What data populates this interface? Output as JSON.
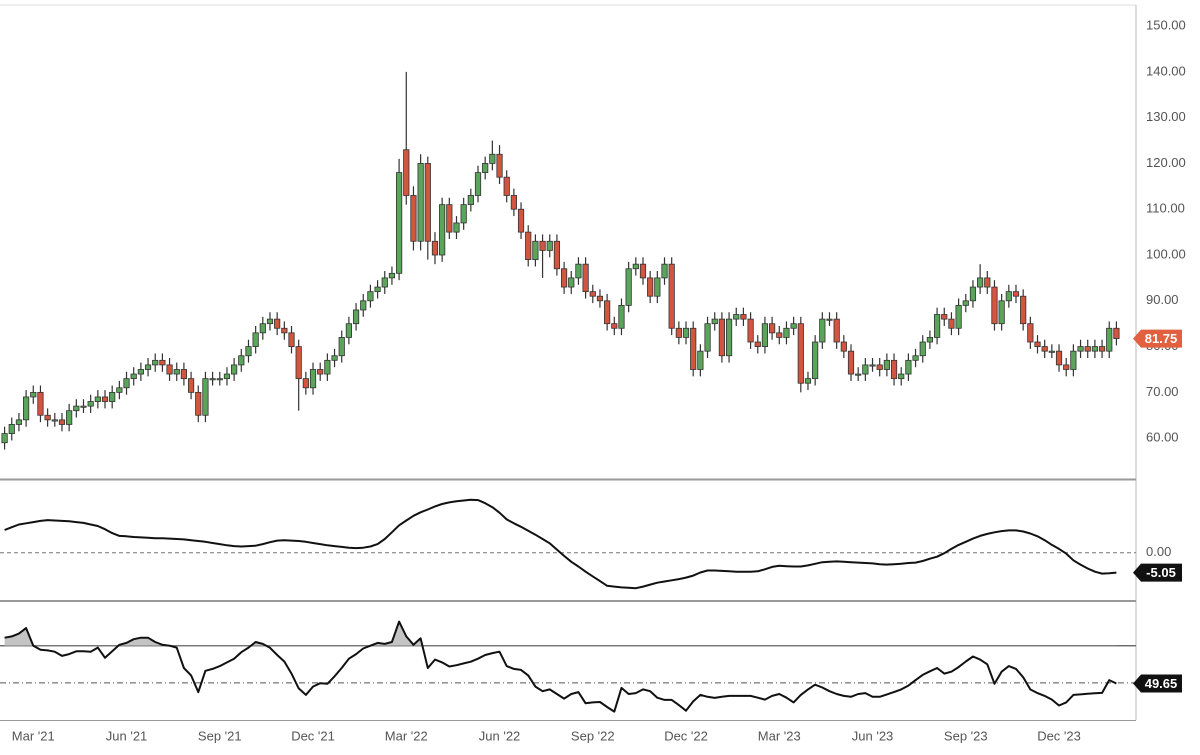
{
  "chart_data": [
    {
      "type": "candlestick",
      "categories": [
        null,
        null,
        null,
        null,
        "Mar '21",
        null,
        null,
        null,
        null,
        null,
        null,
        null,
        null,
        null,
        null,
        null,
        null,
        "Jun '21",
        null,
        null,
        null,
        null,
        null,
        null,
        null,
        null,
        null,
        null,
        null,
        null,
        "Sep '21",
        null,
        null,
        null,
        null,
        null,
        null,
        null,
        null,
        null,
        null,
        null,
        null,
        "Dec '21",
        null,
        null,
        null,
        null,
        null,
        null,
        null,
        null,
        null,
        null,
        null,
        null,
        "Mar '22",
        null,
        null,
        null,
        null,
        null,
        null,
        null,
        null,
        null,
        null,
        null,
        null,
        "Jun '22",
        null,
        null,
        null,
        null,
        null,
        null,
        null,
        null,
        null,
        null,
        null,
        null,
        "Sep '22",
        null,
        null,
        null,
        null,
        null,
        null,
        null,
        null,
        null,
        null,
        null,
        null,
        "Dec '22",
        null,
        null,
        null,
        null,
        null,
        null,
        null,
        null,
        null,
        null,
        null,
        null,
        "Mar '23",
        null,
        null,
        null,
        null,
        null,
        null,
        null,
        null,
        null,
        null,
        null,
        null,
        "Jun '23",
        null,
        null,
        null,
        null,
        null,
        null,
        null,
        null,
        null,
        null,
        null,
        null,
        "Sep '23",
        null,
        null,
        null,
        null,
        null,
        null,
        null,
        null,
        null,
        null,
        null,
        null,
        "Dec '23",
        null,
        null,
        null,
        null,
        null,
        null,
        null,
        null
      ],
      "open": [
        59,
        61,
        63,
        64,
        69,
        70,
        65,
        64,
        64,
        63,
        66,
        67,
        67,
        68,
        69,
        68,
        70,
        71,
        73,
        74,
        75,
        76,
        77,
        76,
        74,
        75,
        73,
        70,
        65,
        73,
        73,
        73,
        74,
        76,
        78,
        80,
        83,
        85,
        86,
        84,
        83,
        80,
        73,
        71,
        75,
        74,
        77,
        78,
        82,
        85,
        88,
        90,
        92,
        93,
        95,
        96,
        123,
        113,
        103,
        120,
        103,
        100,
        111,
        105,
        107,
        111,
        113,
        118,
        120,
        122,
        117,
        113,
        110,
        105,
        99,
        103,
        101,
        103,
        97,
        93,
        95,
        98,
        92,
        91,
        90,
        85,
        84,
        89,
        97,
        98,
        95,
        91,
        95,
        98,
        84,
        82,
        84,
        75,
        79,
        85,
        86,
        78,
        86,
        87,
        86,
        81,
        80,
        85,
        83,
        82,
        84,
        85,
        72,
        73,
        81,
        86,
        86,
        81,
        79,
        74,
        74,
        76,
        76,
        75,
        77,
        73,
        74,
        77,
        78,
        81,
        82,
        87,
        86,
        84,
        89,
        90,
        93,
        95,
        93,
        85,
        90,
        92,
        91,
        85,
        81,
        80,
        79,
        79,
        76,
        75,
        79,
        80,
        79,
        80,
        79,
        84
      ],
      "high": [
        62.5,
        64.5,
        65.5,
        70.5,
        71.5,
        71.5,
        66.5,
        65.5,
        65.5,
        67.5,
        68.5,
        68.5,
        69.5,
        70.5,
        70.5,
        71.5,
        72.5,
        74.5,
        75.5,
        76.5,
        77.5,
        78.5,
        78.5,
        77.5,
        76.5,
        76.5,
        74.5,
        71.5,
        74.5,
        74.5,
        74.5,
        75.5,
        77.5,
        79.5,
        81.5,
        84.5,
        86.5,
        87.5,
        87.5,
        85.5,
        84.5,
        81.5,
        74.5,
        76.5,
        76.5,
        78.5,
        79.5,
        83.5,
        86.5,
        89.5,
        91.5,
        93.5,
        94.5,
        96.5,
        97.5,
        121,
        140,
        115,
        122,
        121.5,
        105,
        112.5,
        112.5,
        108.5,
        112.5,
        114.5,
        119.5,
        121.5,
        125,
        124,
        118.5,
        114.5,
        111.5,
        106.5,
        104.5,
        104.5,
        104.5,
        104.5,
        98.5,
        96.5,
        99.5,
        99.5,
        93.5,
        92.5,
        91.5,
        86.5,
        90.5,
        98.5,
        99.5,
        99.5,
        96.5,
        96.5,
        99.5,
        99.5,
        85.5,
        85.5,
        85.5,
        80.5,
        86.5,
        87.5,
        87.5,
        87.5,
        88.5,
        88.5,
        87.5,
        82.5,
        86.5,
        86.5,
        84.5,
        85.5,
        86.5,
        86.5,
        74.5,
        82.5,
        87.5,
        87.5,
        87.5,
        82.5,
        80.5,
        75.5,
        77.5,
        77.5,
        77.5,
        78.5,
        78.5,
        75.5,
        78.5,
        79.5,
        82.5,
        83.5,
        88.5,
        88.5,
        87.5,
        90.5,
        91.5,
        94.5,
        98,
        96.5,
        94.5,
        91.5,
        93.5,
        93.5,
        92.5,
        86.5,
        82.5,
        81.5,
        80.5,
        80.5,
        77.5,
        80.5,
        81.5,
        81.5,
        81.5,
        81.5,
        85.5,
        85.5
      ],
      "low": [
        57.5,
        59.5,
        61.5,
        62.5,
        67.5,
        63.5,
        62.5,
        62.5,
        61.5,
        61.5,
        64.5,
        65.5,
        65.5,
        66.5,
        66.5,
        66.5,
        68.5,
        69.5,
        71.5,
        72.5,
        73.5,
        74.5,
        74.5,
        72.5,
        72.5,
        71.5,
        68.5,
        63.5,
        63.5,
        71.5,
        71.5,
        71.5,
        72.5,
        74.5,
        76.5,
        78.5,
        81.5,
        83.5,
        82.5,
        81.5,
        78.5,
        66,
        69.5,
        69.5,
        72.5,
        72.5,
        75.5,
        76.5,
        80.5,
        83.5,
        86.5,
        88.5,
        90.5,
        91.5,
        93.5,
        94.5,
        111,
        101,
        101,
        99,
        98,
        98.5,
        103.5,
        103.5,
        105.5,
        109.5,
        111.5,
        116.5,
        118.5,
        115.5,
        111.5,
        108.5,
        103.5,
        97.5,
        97.5,
        95,
        99.5,
        95.5,
        91.5,
        91.5,
        93.5,
        90.5,
        89.5,
        88.5,
        83.5,
        82.5,
        82.5,
        87.5,
        95.5,
        93.5,
        89.5,
        89.5,
        93.5,
        82.5,
        80.5,
        80.5,
        73.5,
        73.5,
        77.5,
        83.5,
        76.5,
        76.5,
        84.5,
        84.5,
        79.5,
        78.5,
        78.5,
        81.5,
        80.5,
        80.5,
        82.5,
        70,
        70.5,
        71.5,
        79.5,
        84.5,
        79.5,
        77.5,
        72.5,
        72.5,
        72.5,
        74.5,
        73.5,
        73.5,
        71.5,
        71.5,
        72.5,
        75.5,
        76.5,
        79.5,
        80.5,
        84.5,
        82.5,
        82.5,
        87.5,
        88.5,
        91.5,
        91.5,
        83.5,
        83.5,
        88.5,
        89.5,
        83.5,
        79.5,
        78.5,
        77.5,
        77.5,
        74.5,
        73.5,
        73.5,
        77.5,
        77.5,
        77.5,
        77.5,
        77.5,
        80.25
      ],
      "close": [
        61,
        63,
        64,
        69,
        70,
        65,
        64,
        64,
        63,
        66,
        67,
        67,
        68,
        69,
        68,
        70,
        71,
        73,
        74,
        75,
        76,
        77,
        76,
        74,
        75,
        73,
        70,
        65,
        73,
        73,
        73,
        74,
        76,
        78,
        80,
        83,
        85,
        86,
        84,
        83,
        80,
        73,
        71,
        75,
        74,
        77,
        78,
        82,
        85,
        88,
        90,
        92,
        93,
        95,
        96,
        118,
        113,
        103,
        120,
        103,
        100,
        111,
        105,
        107,
        111,
        113,
        118,
        120,
        122,
        117,
        113,
        110,
        105,
        99,
        103,
        101,
        103,
        97,
        93,
        95,
        98,
        92,
        91,
        90,
        85,
        84,
        89,
        97,
        98,
        95,
        91,
        95,
        98,
        84,
        82,
        84,
        75,
        79,
        85,
        86,
        78,
        86,
        87,
        86,
        81,
        80,
        85,
        83,
        82,
        84,
        85,
        72,
        73,
        81,
        86,
        86,
        81,
        79,
        74,
        74,
        76,
        76,
        75,
        77,
        73,
        74,
        77,
        78,
        81,
        82,
        87,
        86,
        84,
        89,
        90,
        93,
        95,
        93,
        85,
        90,
        92,
        91,
        85,
        81,
        80,
        79,
        79,
        76,
        75,
        79,
        80,
        79,
        80,
        79,
        84,
        81.75
      ],
      "up_color": "#5aa55a",
      "down_color": "#d2553f",
      "badge_color": "#e0603f",
      "ylim": [
        51.3,
        154.6
      ],
      "yticks": [
        {
          "value": 60,
          "label": "60.00"
        },
        {
          "value": 70,
          "label": "70.00"
        },
        {
          "value": 80,
          "label": "80.00"
        },
        {
          "value": 90,
          "label": "90.00"
        },
        {
          "value": 100,
          "label": "100.00"
        },
        {
          "value": 110,
          "label": "110.00"
        },
        {
          "value": 120,
          "label": "120.00"
        },
        {
          "value": 130,
          "label": "130.00"
        },
        {
          "value": 140,
          "label": "140.00"
        },
        {
          "value": 150,
          "label": "150.00"
        }
      ]
    },
    {
      "type": "line",
      "values": [
        5.8,
        6.5,
        7.2,
        7.5,
        7.8,
        8.1,
        8.3,
        8.2,
        8.1,
        8,
        7.8,
        7.6,
        7.2,
        6.8,
        6,
        5,
        4.3,
        4.2,
        4,
        3.9,
        3.8,
        3.7,
        3.7,
        3.6,
        3.5,
        3.4,
        3.2,
        3,
        2.8,
        2.5,
        2.2,
        1.9,
        1.7,
        1.6,
        1.7,
        1.8,
        2.2,
        2.7,
        3.1,
        3.2,
        3.1,
        3,
        2.8,
        2.5,
        2.2,
        1.9,
        1.7,
        1.5,
        1.3,
        1.2,
        1.3,
        1.6,
        2.2,
        3.5,
        5.2,
        7,
        8.2,
        9.4,
        10.3,
        11,
        11.8,
        12.4,
        12.8,
        13.1,
        13.3,
        13.5,
        13.4,
        12.6,
        11.6,
        10.2,
        8.5,
        7.5,
        6.6,
        5.6,
        4.6,
        3.5,
        2.4,
        0.8,
        -0.8,
        -2.3,
        -3.5,
        -4.8,
        -6,
        -7.2,
        -8.4,
        -8.6,
        -8.8,
        -8.9,
        -9,
        -8.6,
        -8.1,
        -7.6,
        -7.3,
        -7,
        -6.7,
        -6.3,
        -5.8,
        -5,
        -4.5,
        -4.5,
        -4.6,
        -4.7,
        -4.8,
        -4.8,
        -4.8,
        -4.7,
        -4.2,
        -3.6,
        -3.3,
        -3.4,
        -3.5,
        -3.5,
        -3.2,
        -2.8,
        -2.4,
        -2.3,
        -2.2,
        -2.3,
        -2.4,
        -2.5,
        -2.6,
        -2.7,
        -2.9,
        -3,
        -2.9,
        -2.8,
        -2.6,
        -2.5,
        -2.1,
        -1.5,
        -1,
        -0.1,
        1,
        2,
        2.8,
        3.6,
        4.3,
        4.8,
        5.2,
        5.5,
        5.7,
        5.7,
        5.4,
        4.9,
        4.2,
        3.2,
        2,
        1,
        -0.2,
        -1.9,
        -3,
        -4,
        -4.8,
        -5.3,
        -5.2,
        -5.05
      ],
      "color": "#111111",
      "badge_color": "#111111",
      "ylim": [
        -11.75,
        18.25
      ],
      "yticks": [
        {
          "value": 0,
          "label": "0.00"
        }
      ]
    },
    {
      "type": "line",
      "values": [
        74.3,
        75,
        76.5,
        79.5,
        70,
        67.8,
        67.5,
        66.8,
        64.5,
        65.5,
        67,
        67,
        66.8,
        69,
        63.5,
        67,
        70.5,
        71.5,
        73.5,
        74.3,
        74.3,
        72,
        70.5,
        70,
        69,
        58,
        54,
        45,
        56.5,
        57.5,
        59,
        61,
        63,
        66.5,
        69,
        72,
        71,
        68.9,
        65,
        61.5,
        55,
        47,
        43.5,
        48,
        49.8,
        49.5,
        53.5,
        58,
        63,
        65.5,
        68.5,
        70,
        71.5,
        71,
        72,
        83,
        75,
        70.5,
        74,
        58,
        62.5,
        61,
        58.8,
        59.5,
        60.5,
        61.4,
        63,
        65,
        66,
        66.8,
        59,
        57.5,
        57,
        54,
        48,
        45.5,
        46.5,
        44,
        41.5,
        44,
        45,
        39,
        39.5,
        39.7,
        37,
        34.5,
        47.3,
        44,
        44.5,
        46.5,
        45.5,
        42,
        40.8,
        40.8,
        38,
        35,
        40,
        43.5,
        42.5,
        41.9,
        42.5,
        43,
        43,
        43,
        43,
        42,
        41,
        43,
        44,
        42,
        39.5,
        43.5,
        46.5,
        49,
        47.5,
        45.5,
        44,
        43,
        42.5,
        44,
        44.5,
        42.5,
        42.5,
        43.8,
        45,
        46.5,
        48.5,
        51.5,
        54.3,
        56.2,
        58,
        55,
        56,
        58.5,
        61.5,
        64.2,
        62.5,
        60,
        49.5,
        56,
        59,
        57.5,
        53,
        46.5,
        44.5,
        43,
        41,
        37.8,
        39.5,
        43.5,
        43.8,
        44.1,
        44.4,
        44.6,
        51.5,
        49.65
      ],
      "color": "#111111",
      "badge_color": "#111111",
      "shade_color": "#c4c4c4",
      "ylim": [
        30,
        93
      ],
      "levels": [
        {
          "value": 70,
          "style": "solid"
        },
        {
          "value": 50,
          "style": "dashdot"
        }
      ]
    }
  ]
}
